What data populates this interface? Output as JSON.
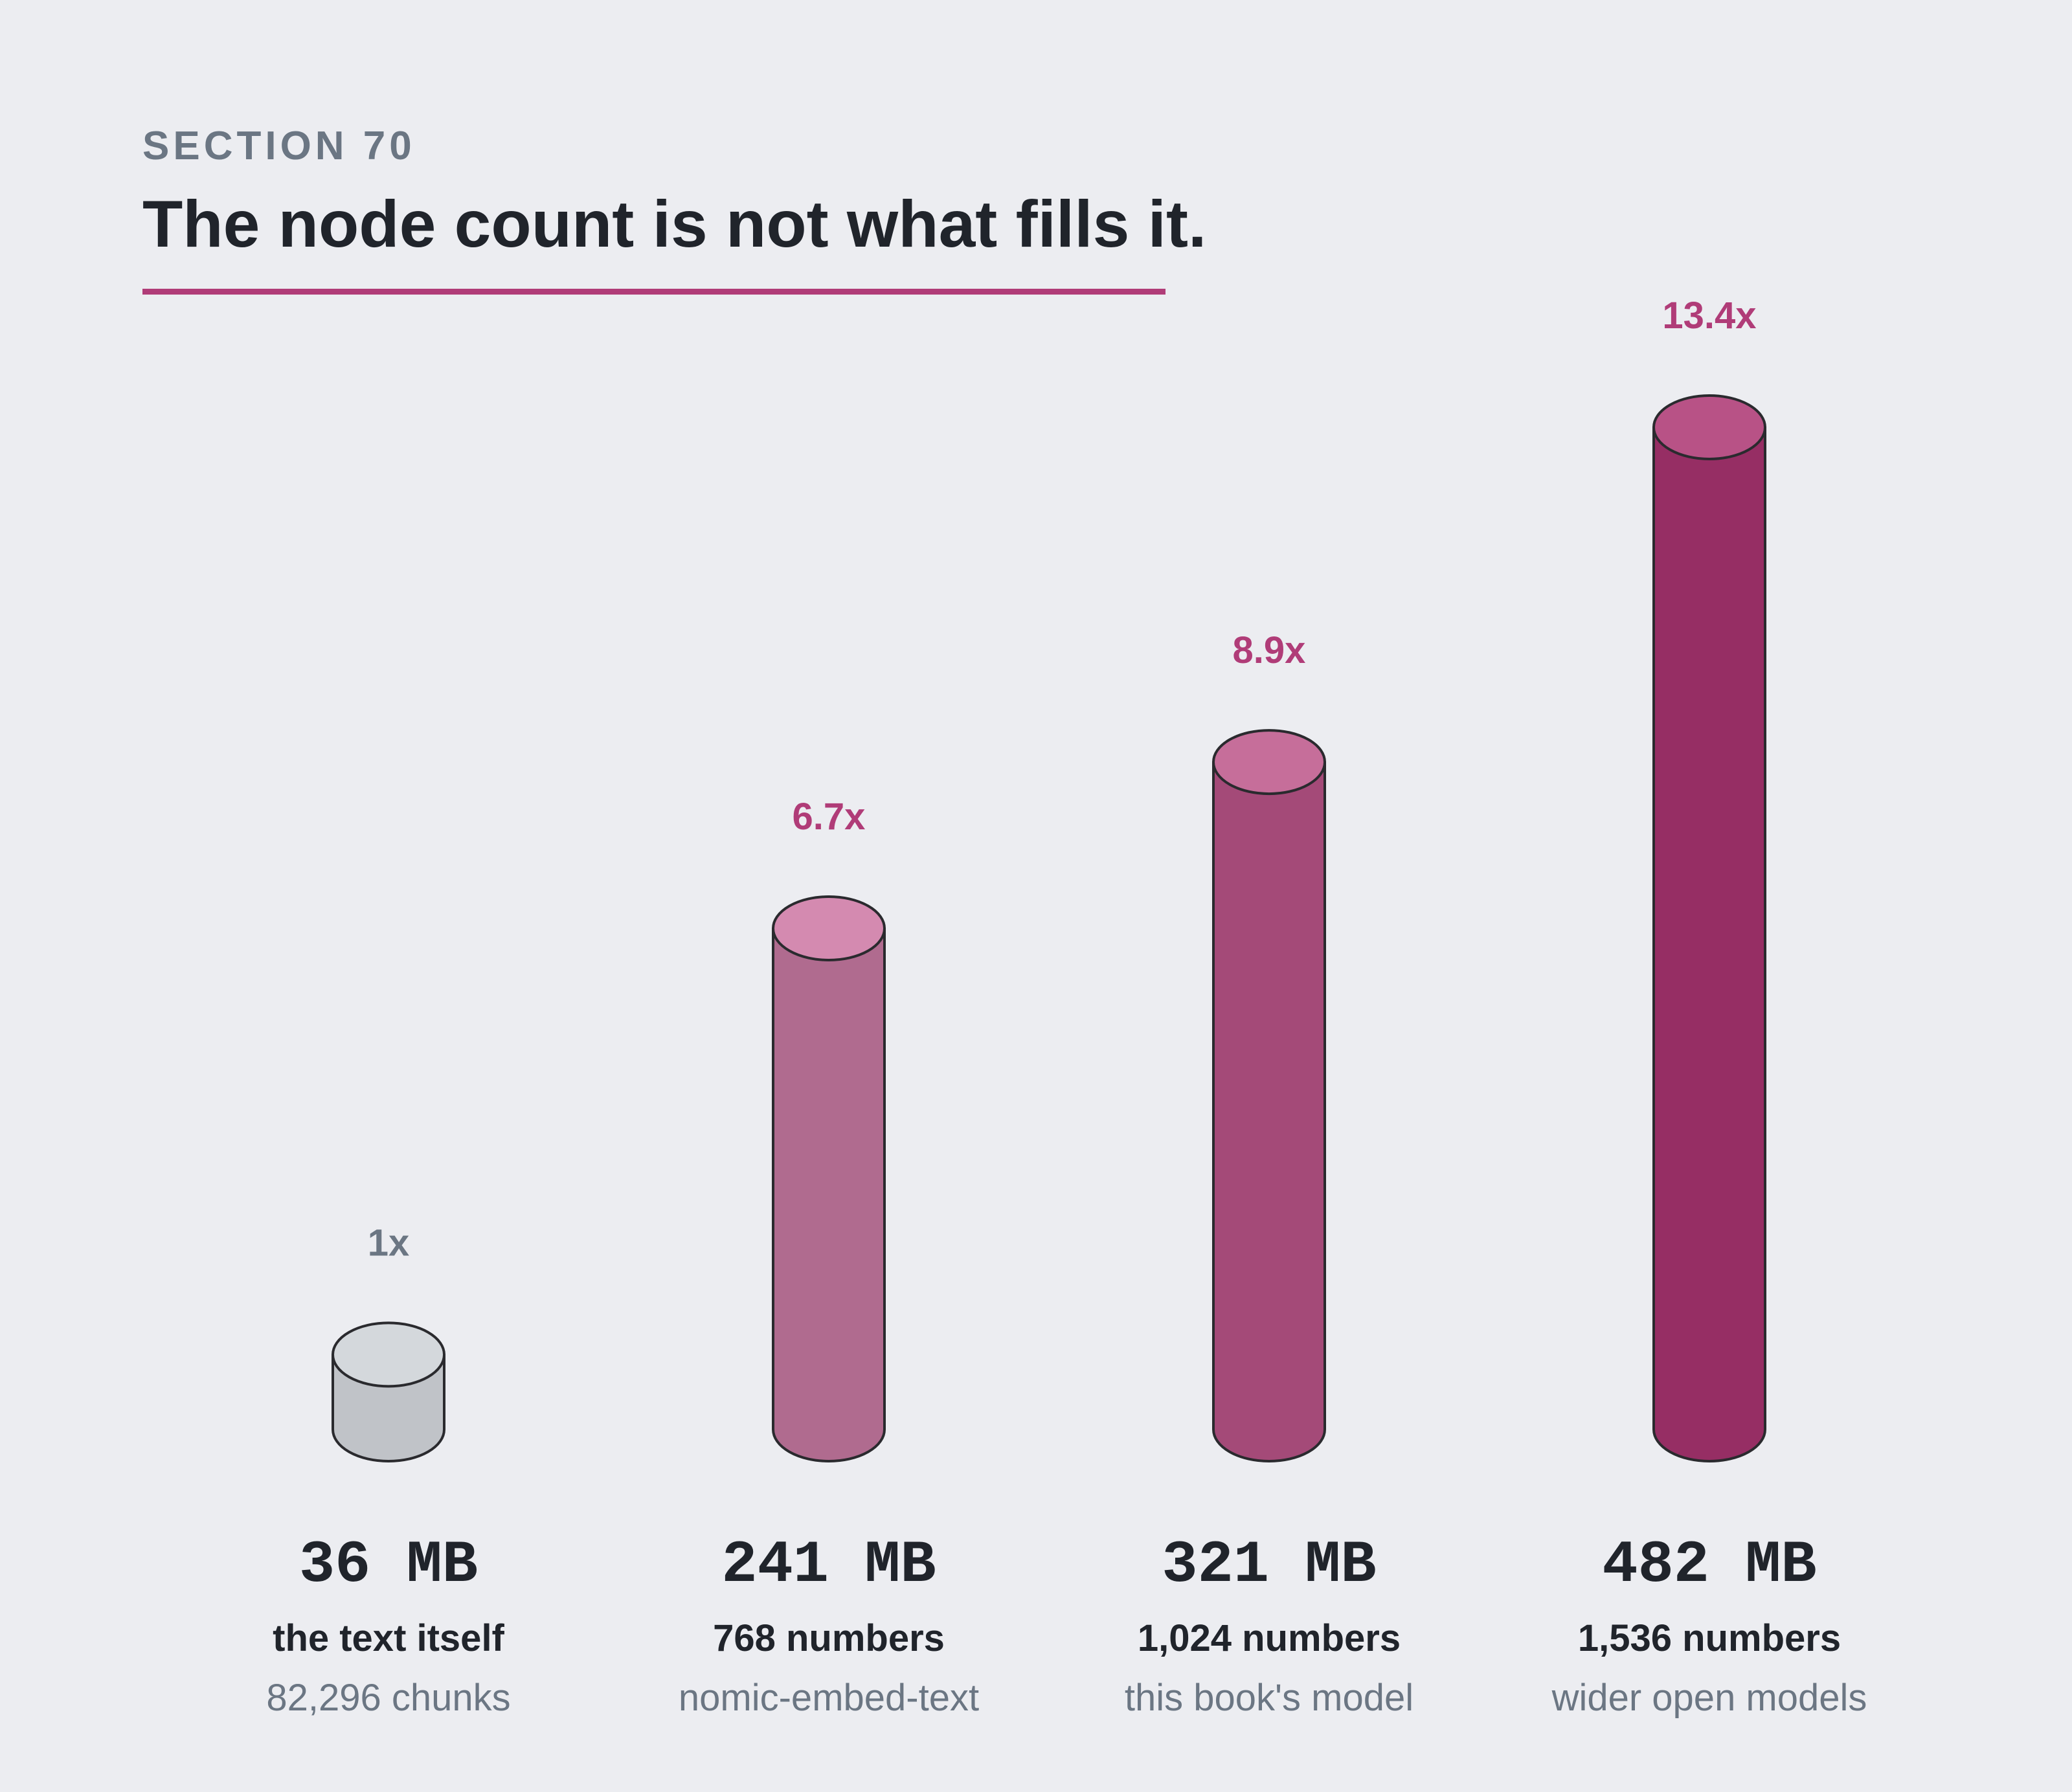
{
  "header": {
    "section_label": "SECTION 70",
    "title": "The node count is not what fills it."
  },
  "colors": {
    "accent": "#b03c78",
    "text": "#20242b",
    "muted": "#6b7683",
    "background": "#ecedf1"
  },
  "chart_data": {
    "type": "bar",
    "title": "",
    "xlabel": "",
    "ylabel": "",
    "grid": false,
    "categories": [
      "the text itself",
      "768 numbers",
      "1,024 numbers",
      "1,536 numbers"
    ],
    "values": [
      36,
      241,
      321,
      482
    ],
    "units": "MB",
    "ylim": [
      0,
      482
    ],
    "bars": [
      {
        "size_label": "36 MB",
        "multiplier_label": "1x",
        "description": "the text itself",
        "sublabel": "82,296 chunks",
        "body_color": "#c0c3c8",
        "cap_color": "#d4d8dc",
        "label_color": "#6b7683"
      },
      {
        "size_label": "241 MB",
        "multiplier_label": "6.7x",
        "description": "768 numbers",
        "sublabel": "nomic-embed-text",
        "body_color": "#b06b8f",
        "cap_color": "#d48ab0",
        "label_color": "#b03c78"
      },
      {
        "size_label": "321 MB",
        "multiplier_label": "8.9x",
        "description": "1,024 numbers",
        "sublabel": "this book's model",
        "body_color": "#a44a78",
        "cap_color": "#c66e9a",
        "label_color": "#b03c78"
      },
      {
        "size_label": "482 MB",
        "multiplier_label": "13.4x",
        "description": "1,536 numbers",
        "sublabel": "wider open models",
        "body_color": "#962e64",
        "cap_color": "#b85286",
        "label_color": "#b03c78"
      }
    ]
  }
}
